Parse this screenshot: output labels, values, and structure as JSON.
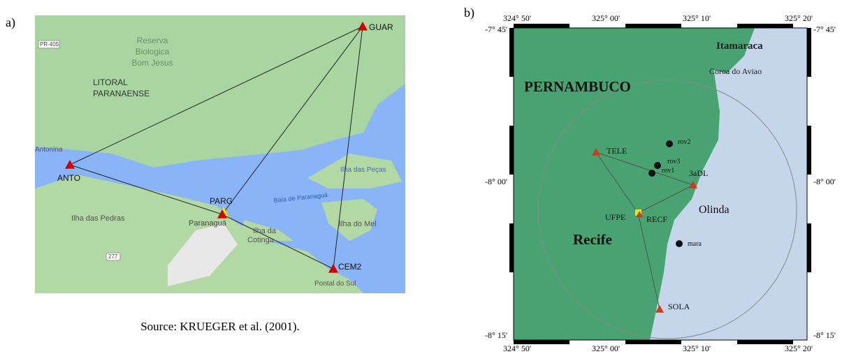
{
  "panel_a": {
    "label": "a)",
    "places": [
      "Reserva",
      "Biologica",
      "Bom Jesus",
      "PR-405",
      "LITORAL",
      "PARANAENSE",
      "Antonina",
      "Baía de Paranaguá",
      "Ilha das Peças",
      "Ilha das Pedras",
      "Paranaguá",
      "Ilha da",
      "Cotinga",
      "Ilha do Mel",
      "277",
      "Pontal do Sul"
    ],
    "stations": [
      "GUAR",
      "ANTO",
      "PARG",
      "CEM2"
    ],
    "caption": "Source: KRUEGER et al. (2001)."
  },
  "panel_b": {
    "label": "b)",
    "lon_ticks": [
      "324° 50'",
      "325° 00'",
      "325° 10'",
      "325° 20'"
    ],
    "lat_ticks": [
      "-7° 45'",
      "-8° 00'",
      "-8° 15'"
    ],
    "places": [
      "Itamaraca",
      "Coroa do Aviao",
      "PERNAMBUCO",
      "Olinda",
      "Recife"
    ],
    "stations": [
      "TELE",
      "3aDL",
      "UFPE",
      "RECF",
      "SOLA"
    ],
    "points": [
      "rov2",
      "rov3",
      "rov1",
      "mara"
    ]
  }
}
